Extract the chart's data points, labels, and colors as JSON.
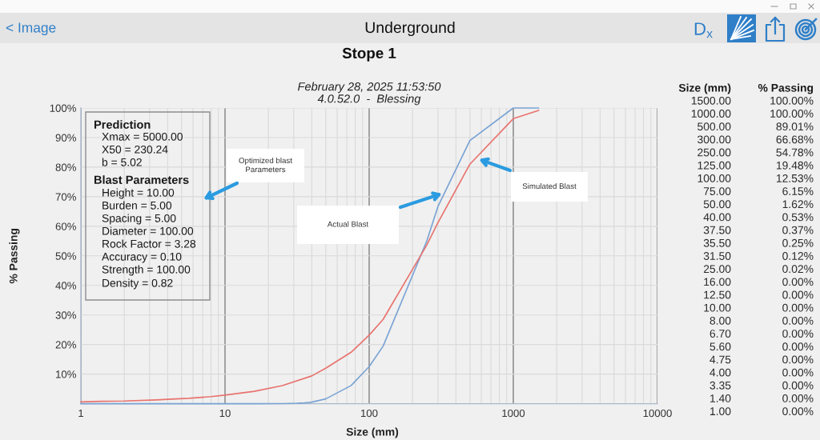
{
  "chart_data": [
    {
      "type": "line",
      "title": "Stope 1",
      "subtitle": "February 28, 2025 11:53:50\n4.0.52.0  -  Blessing",
      "xlabel": "Size (mm)",
      "ylabel": "% Passing",
      "log": "x",
      "grid": true,
      "xlim": [
        1,
        10000
      ],
      "xticks": [
        1,
        10,
        100,
        1000,
        10000
      ],
      "ylim": [
        0,
        100
      ],
      "yticks": [
        {
          "value": 10,
          "label": "10%"
        },
        {
          "value": 20,
          "label": "20%"
        },
        {
          "value": 30,
          "label": "30%"
        },
        {
          "value": 40,
          "label": "40%"
        },
        {
          "value": 50,
          "label": "50%"
        },
        {
          "value": 60,
          "label": "60%"
        },
        {
          "value": 70,
          "label": "70%"
        },
        {
          "value": 80,
          "label": "80%"
        },
        {
          "value": 90,
          "label": "90%"
        },
        {
          "value": 100,
          "label": "100%"
        }
      ],
      "series": [
        {
          "color": "#7aa3d4",
          "x": [
            1500,
            1000,
            500,
            300,
            250,
            125,
            100,
            75,
            50,
            40,
            37.5,
            35.5,
            31.5,
            25,
            16,
            12.5,
            10,
            8,
            6.7,
            5.6,
            4.75,
            4,
            3.35,
            1.4,
            1
          ],
          "values": [
            100,
            100,
            89.01,
            66.68,
            54.78,
            19.48,
            12.53,
            6.15,
            1.62,
            0.53,
            0.37,
            0.25,
            0.12,
            0.02,
            0,
            0,
            0,
            0,
            0,
            0,
            0,
            0,
            0,
            0,
            0
          ]
        },
        {
          "color": "#e8736e",
          "x": [
            1,
            1.4,
            2,
            3.35,
            4,
            5.6,
            8,
            10,
            16,
            25,
            40,
            50,
            75,
            100,
            125,
            250,
            300,
            500,
            1000,
            1500
          ],
          "values": [
            0.6,
            0.8,
            0.9,
            1.3,
            1.5,
            1.8,
            2.4,
            2.9,
            4.2,
            6.1,
            9.4,
            12,
            17.4,
            23.2,
            28.5,
            53.5,
            61.2,
            81,
            96.4,
            99.2
          ]
        }
      ],
      "annotations": [
        "< Image",
        "Underground",
        "D$_{x}$",
        "Prediction",
        "Xmax = 5000.00",
        "X50 = 230.24",
        "b = 5.02",
        "Blast Parameters",
        "Height = 10.00",
        "Burden = 5.00",
        "Spacing = 5.00",
        "Diameter = 100.00",
        "Rock Factor = 3.28",
        "Accuracy = 0.10",
        "Strength = 100.00",
        "Density = 0.82",
        "Optimized blast\nParameters",
        "Actual Blast",
        "Simulated Blast"
      ]
    },
    {
      "type": "other",
      "annotations": [
        "Size (mm)",
        "% Passing",
        "1500.00",
        "100.00%",
        "1000.00",
        "100.00%",
        "500.00",
        "89.01%",
        "300.00",
        "66.68%",
        "250.00",
        "54.78%",
        "125.00",
        "19.48%",
        "100.00",
        "12.53%",
        "75.00",
        "6.15%",
        "50.00",
        "1.62%",
        "40.00",
        "0.53%",
        "37.50",
        "0.37%",
        "35.50",
        "0.25%",
        "31.50",
        "0.12%",
        "25.00",
        "0.02%",
        "16.00",
        "0.00%",
        "12.50",
        "0.00%",
        "10.00",
        "0.00%",
        "8.00",
        "0.00%",
        "6.70",
        "0.00%",
        "5.60",
        "0.00%",
        "4.75",
        "0.00%",
        "4.00",
        "0.00%",
        "3.35",
        "0.00%",
        "1.40",
        "0.00%",
        "1.00",
        "0.00%"
      ]
    }
  ]
}
